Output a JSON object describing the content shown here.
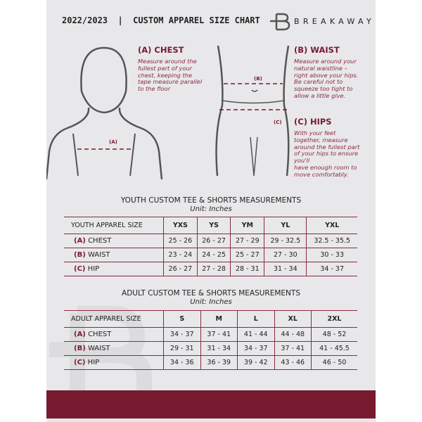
{
  "header": {
    "title": "2022/2023  |  CUSTOM APPAREL SIZE CHART",
    "brand": "BREAKAWAY"
  },
  "guide": {
    "chest": {
      "heading": "(A) CHEST",
      "marker": "(A)",
      "lines": [
        "Measure around the",
        "fullest part of your",
        "chest, keeping the",
        "tape measure parallel",
        "to the floor"
      ]
    },
    "waist": {
      "heading": "(B) WAIST",
      "marker": "(B)",
      "lines": [
        "Measure around your",
        "natural waistline –",
        "right above your hips.",
        "Be careful not to",
        "squeeze too tight to",
        "allow a little give."
      ]
    },
    "hips": {
      "heading": "(C) HIPS",
      "marker": "(C)",
      "lines": [
        "With your feet",
        "together, measure",
        "around the fullest part",
        "of your hips to ensure",
        "you'll",
        "have enough room to",
        "move comfortably."
      ]
    }
  },
  "youth": {
    "title": "YOUTH CUSTOM TEE & SHORTS MEASUREMENTS",
    "unit": "Unit: Inches",
    "header": [
      "YOUTH APPAREL SIZE",
      "YXS",
      "YS",
      "YM",
      "YL",
      "YXL"
    ],
    "rows": [
      {
        "letter": "(A)",
        "name": "CHEST",
        "values": [
          "25 - 26",
          "26 - 27",
          "27 - 29",
          "29 - 32.5",
          "32.5 - 35.5"
        ]
      },
      {
        "letter": "(B)",
        "name": "WAIST",
        "values": [
          "23 - 24",
          "24 - 25",
          "25 - 27",
          "27 - 30",
          "30 - 33"
        ]
      },
      {
        "letter": "(C)",
        "name": "HIP",
        "values": [
          "26 - 27",
          "27 - 28",
          "28 - 31",
          "31 - 34",
          "34 - 37"
        ]
      }
    ]
  },
  "adult": {
    "title": "ADULT CUSTOM TEE & SHORTS MEASUREMENTS",
    "unit": "Unit: Inches",
    "header": [
      "ADULT APPAREL SIZE",
      "S",
      "M",
      "L",
      "XL",
      "2XL"
    ],
    "rows": [
      {
        "letter": "(A)",
        "name": "CHEST",
        "values": [
          "34 - 37",
          "37 - 41",
          "41 - 44",
          "44 - 48",
          "48 - 52"
        ]
      },
      {
        "letter": "(B)",
        "name": "WAIST",
        "values": [
          "29 - 31",
          "31 - 34",
          "34 - 37",
          "37 - 41",
          "41 - 45.5"
        ]
      },
      {
        "letter": "(C)",
        "name": "HIP",
        "values": [
          "34 - 36",
          "36 - 39",
          "39 - 42",
          "43 - 46",
          "46 - 50"
        ]
      }
    ]
  },
  "colors": {
    "accent": "#771a30",
    "panel": "#e8e8ea"
  },
  "watermark": "B"
}
